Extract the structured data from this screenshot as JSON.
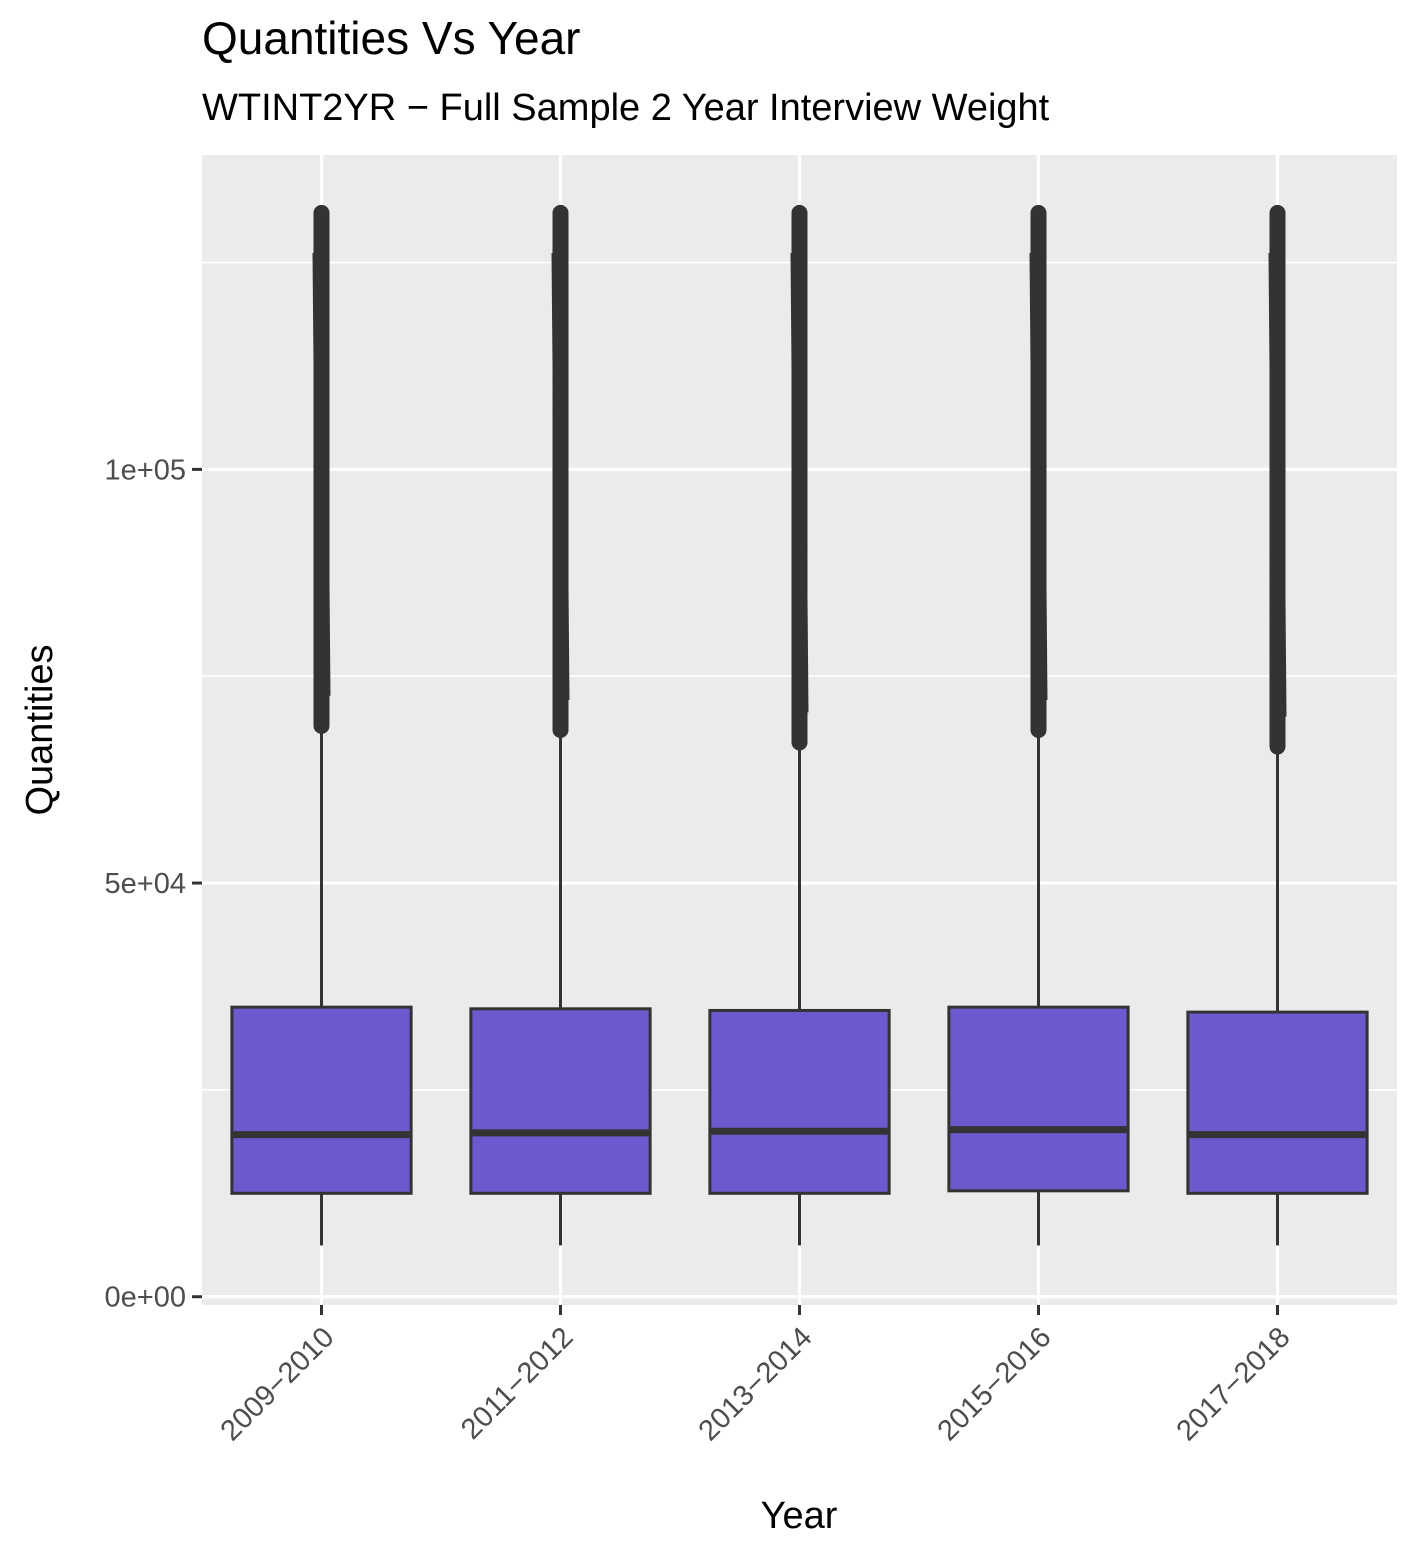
{
  "chart_data": {
    "type": "boxplot",
    "title": "Quantities Vs Year",
    "subtitle": "WTINT2YR − Full Sample 2 Year Interview Weight",
    "xlabel": "Year",
    "ylabel": "Quantities",
    "ylim": [
      -1000,
      138000
    ],
    "yticks": [
      {
        "value": 0,
        "label": "0e+00"
      },
      {
        "value": 50000,
        "label": "5e+04"
      },
      {
        "value": 100000,
        "label": "1e+05"
      }
    ],
    "grid": true,
    "categories": [
      "2009−2010",
      "2011−2012",
      "2013−2014",
      "2015−2016",
      "2017−2018"
    ],
    "boxes": [
      {
        "category": "2009−2010",
        "whisker_low": 6200,
        "q1": 12500,
        "median": 19600,
        "q3": 35000,
        "whisker_high": 68500,
        "outliers_min": 69000,
        "outliers_max": 131000
      },
      {
        "category": "2011−2012",
        "whisker_low": 6200,
        "q1": 12500,
        "median": 19800,
        "q3": 34800,
        "whisker_high": 68000,
        "outliers_min": 68500,
        "outliers_max": 131000
      },
      {
        "category": "2013−2014",
        "whisker_low": 6200,
        "q1": 12500,
        "median": 20000,
        "q3": 34600,
        "whisker_high": 66500,
        "outliers_min": 67000,
        "outliers_max": 131000
      },
      {
        "category": "2015−2016",
        "whisker_low": 6200,
        "q1": 12800,
        "median": 20200,
        "q3": 35000,
        "whisker_high": 68000,
        "outliers_min": 68500,
        "outliers_max": 131000
      },
      {
        "category": "2017−2018",
        "whisker_low": 6200,
        "q1": 12500,
        "median": 19600,
        "q3": 34400,
        "whisker_high": 66000,
        "outliers_min": 66500,
        "outliers_max": 131000
      }
    ],
    "colors": {
      "box_fill": "#6a5acd",
      "box_line": "#333333",
      "panel_bg": "#ebebeb",
      "grid": "#ffffff"
    }
  }
}
